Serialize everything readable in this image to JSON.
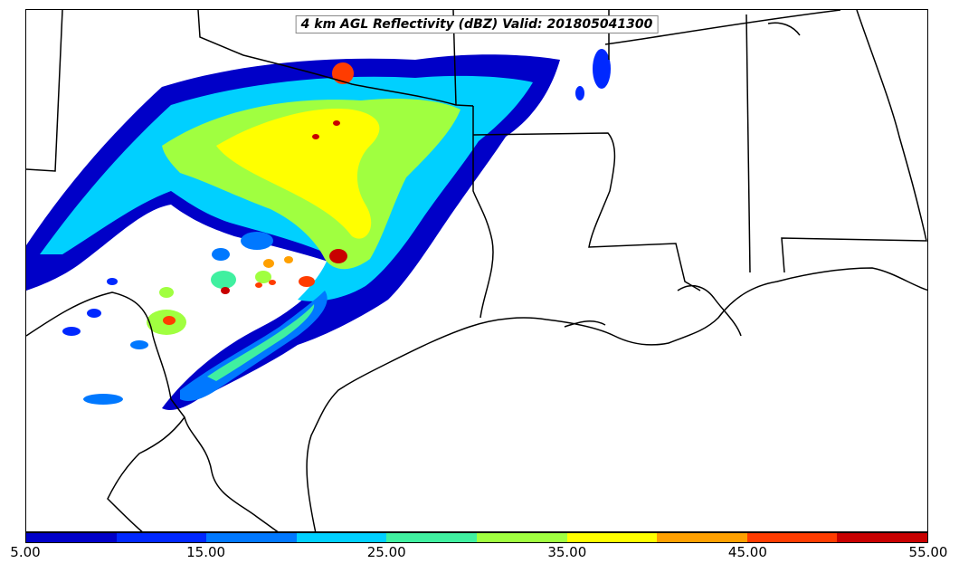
{
  "title": "4 km AGL Reflectivity (dBZ) Valid: 201805041300",
  "colorbar": {
    "ticks": [
      "5.00",
      "15.00",
      "25.00",
      "35.00",
      "45.00",
      "55.00"
    ],
    "colors": [
      "#0000c8",
      "#0028ff",
      "#0078ff",
      "#00d0ff",
      "#40f0a0",
      "#a0ff40",
      "#ffff00",
      "#ffa000",
      "#ff3c00",
      "#c80000"
    ]
  },
  "map_layers": [
    "state-boundaries",
    "coastline",
    "reflectivity-field"
  ]
}
